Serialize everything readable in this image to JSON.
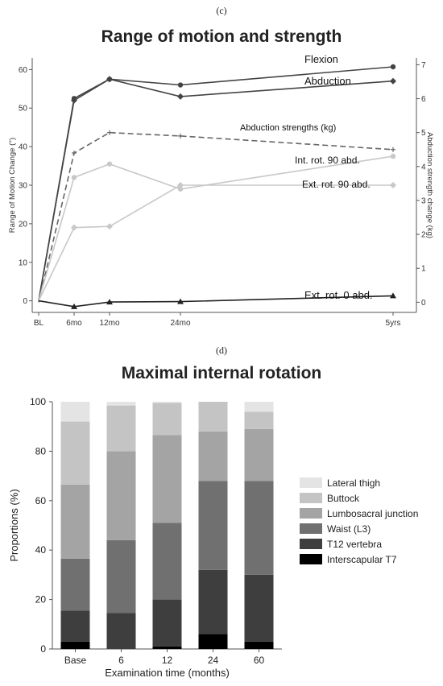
{
  "panels": {
    "c_label": "(c)",
    "d_label": "(d)"
  },
  "chart_data": [
    {
      "type": "line",
      "title": "Range of motion and strength",
      "ylabel": "Range of Motion Change (°)",
      "y2label": "Abduction strength change (kg)",
      "categories": [
        "BL",
        "6mo",
        "12mo",
        "24mo",
        "5yrs"
      ],
      "x": [
        0,
        6,
        12,
        24,
        60
      ],
      "ylim": [
        -3,
        63
      ],
      "y2lim": [
        -0.3,
        7.2
      ],
      "yticks": [
        0,
        10,
        20,
        30,
        40,
        50,
        60
      ],
      "y2ticks": [
        0,
        1,
        2,
        3,
        4,
        5,
        6,
        7
      ],
      "series": [
        {
          "name": "Flexion",
          "axis": "left",
          "color": "#444444",
          "style": "solid",
          "marker": "circle",
          "values": [
            0,
            52.5,
            57.5,
            56.0,
            60.7
          ]
        },
        {
          "name": "Abduction",
          "axis": "left",
          "color": "#444444",
          "style": "solid",
          "marker": "diamond",
          "values": [
            0,
            52.0,
            57.5,
            53.0,
            57.0
          ]
        },
        {
          "name": "Abduction strengths (kg)",
          "axis": "right",
          "color": "#666666",
          "style": "dashed",
          "marker": "plus",
          "values": [
            0,
            4.4,
            5.0,
            4.9,
            4.5
          ]
        },
        {
          "name": "Int. rot. 90 abd.",
          "axis": "left",
          "color": "#c8c8c8",
          "style": "solid",
          "marker": "circle",
          "values": [
            0,
            32.0,
            35.5,
            29.0,
            37.5
          ]
        },
        {
          "name": "Ext. rot. 90 abd.",
          "axis": "left",
          "color": "#c8c8c8",
          "style": "solid",
          "marker": "diamond",
          "values": [
            0,
            19.0,
            19.3,
            30.0,
            30.0
          ]
        },
        {
          "name": "Ext. rot. 0 abd.",
          "axis": "left",
          "color": "#222222",
          "style": "solid",
          "marker": "triangle",
          "values": [
            0,
            -1.5,
            -0.3,
            -0.2,
            1.3
          ]
        }
      ]
    },
    {
      "type": "bar",
      "stacked": true,
      "title": "Maximal internal rotation",
      "xlabel": "Examination time (months)",
      "ylabel": "Proportions (%)",
      "categories": [
        "Base",
        "6",
        "12",
        "24",
        "60"
      ],
      "ylim": [
        0,
        100
      ],
      "yticks": [
        0,
        20,
        40,
        60,
        80,
        100
      ],
      "legend_position": "right",
      "series": [
        {
          "name": "Interscapular T7",
          "color": "#000000",
          "values": [
            3,
            0,
            1,
            6,
            3
          ]
        },
        {
          "name": "T12 vertebra",
          "color": "#3e3e3e",
          "values": [
            12.5,
            14.5,
            19,
            26,
            27
          ]
        },
        {
          "name": "Waist (L3)",
          "color": "#707070",
          "values": [
            21,
            29.5,
            31,
            36,
            38
          ]
        },
        {
          "name": "Lumbosacral junction",
          "color": "#a4a4a4",
          "values": [
            30,
            36,
            35.5,
            20,
            21
          ]
        },
        {
          "name": "Buttock",
          "color": "#c4c4c4",
          "values": [
            25.5,
            18.5,
            13,
            12,
            7
          ]
        },
        {
          "name": "Lateral thigh",
          "color": "#e4e4e4",
          "values": [
            8,
            1.5,
            0.5,
            0,
            4
          ]
        }
      ]
    }
  ]
}
